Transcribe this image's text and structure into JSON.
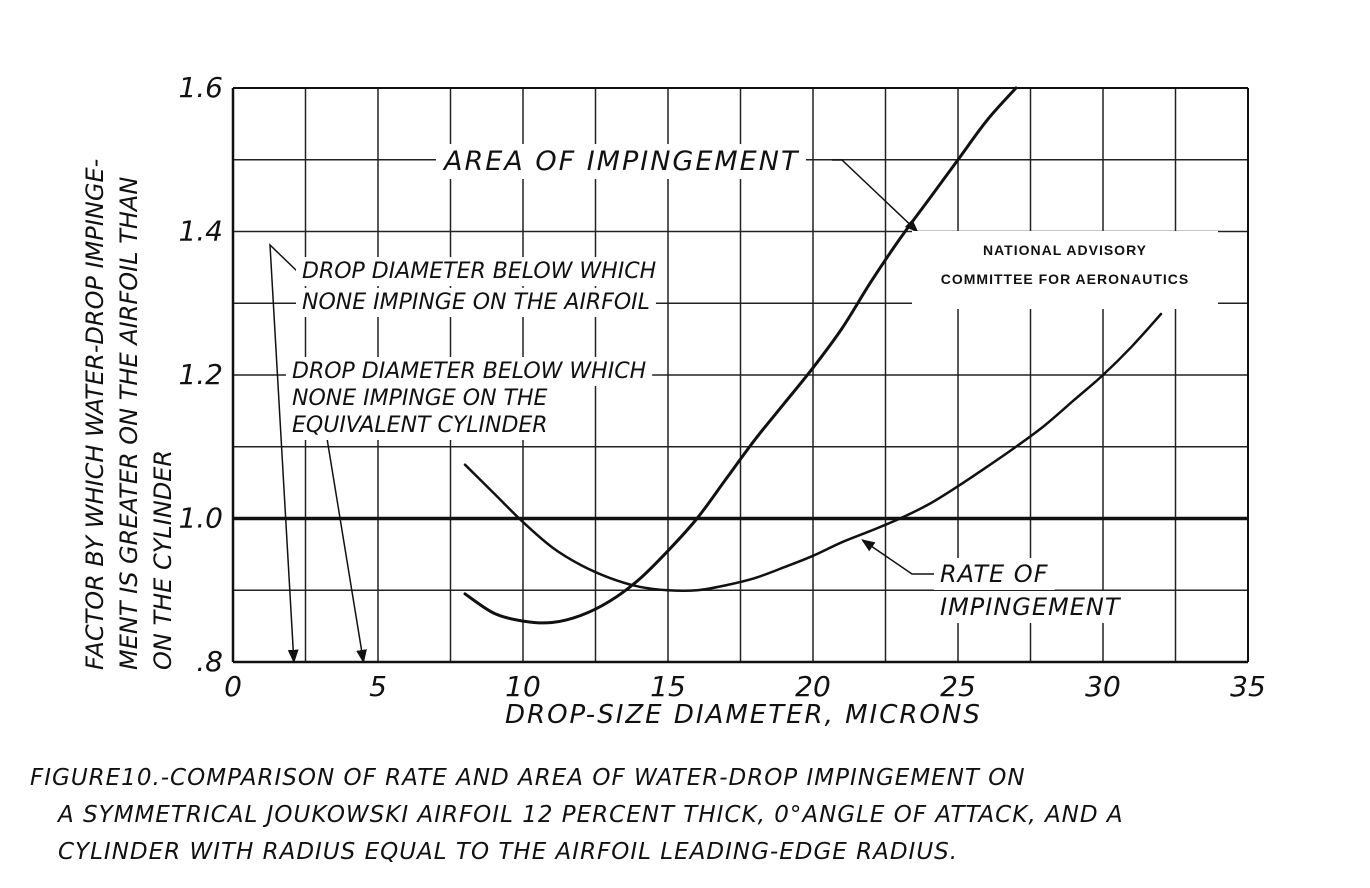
{
  "chart_data": {
    "type": "line",
    "xlabel": "DROP-SIZE DIAMETER, MICRONS",
    "ylabel_lines": [
      "FACTOR BY WHICH WATER-DROP IMPINGE-",
      "MENT IS GREATER ON THE AIRFOIL THAN",
      "ON THE CYLINDER"
    ],
    "xlim": [
      0,
      35
    ],
    "ylim": [
      0.8,
      1.6
    ],
    "x_ticks": [
      0,
      5,
      10,
      15,
      20,
      25,
      30,
      35
    ],
    "x_tick_labels": [
      "0",
      "5",
      "10",
      "15",
      "20",
      "25",
      "30",
      "35"
    ],
    "y_ticks": [
      0.8,
      1.0,
      1.2,
      1.4,
      1.6
    ],
    "y_tick_labels": [
      ".8",
      "1.0",
      "1.2",
      "1.4",
      "1.6"
    ],
    "grid": true,
    "reference_line_y": 1.0,
    "series": [
      {
        "name": "AREA OF IMPINGEMENT",
        "x": [
          8,
          9,
          10,
          11,
          12,
          13,
          14,
          15,
          16,
          17,
          18,
          19,
          20,
          21,
          22,
          23,
          24,
          25,
          26,
          27
        ],
        "y": [
          0.895,
          0.868,
          0.857,
          0.855,
          0.865,
          0.885,
          0.915,
          0.955,
          1.0,
          1.055,
          1.11,
          1.16,
          1.21,
          1.265,
          1.33,
          1.39,
          1.445,
          1.5,
          1.555,
          1.6
        ]
      },
      {
        "name": "RATE OF IMPINGEMENT",
        "x": [
          8,
          9,
          10,
          11,
          12,
          13,
          14,
          15,
          16,
          17,
          18,
          19,
          20,
          21,
          22,
          23,
          24,
          25,
          26,
          27,
          28,
          29,
          30,
          31,
          32
        ],
        "y": [
          1.075,
          1.035,
          0.995,
          0.96,
          0.935,
          0.917,
          0.905,
          0.9,
          0.9,
          0.907,
          0.917,
          0.932,
          0.948,
          0.967,
          0.983,
          1.0,
          1.02,
          1.045,
          1.072,
          1.1,
          1.13,
          1.165,
          1.2,
          1.24,
          1.285
        ]
      }
    ],
    "annotations": [
      {
        "text": "AREA OF IMPINGEMENT",
        "target": [
          23.6,
          1.4
        ]
      },
      {
        "text": "RATE OF IMPINGEMENT",
        "target": [
          21.7,
          0.97
        ]
      },
      {
        "lines": [
          "DROP DIAMETER BELOW WHICH",
          "NONE IMPINGE ON THE AIRFOIL"
        ],
        "target": [
          2.1,
          0.8
        ]
      },
      {
        "lines": [
          "DROP DIAMETER BELOW WHICH",
          "NONE IMPINGE ON THE",
          "EQUIVALENT CYLINDER"
        ],
        "target": [
          4.5,
          0.8
        ]
      }
    ],
    "stamp_lines": [
      "NATIONAL ADVISORY",
      "COMMITTEE FOR AERONAUTICS"
    ]
  },
  "caption": [
    "FIGURE10.-COMPARISON OF RATE AND AREA OF WATER-DROP IMPINGEMENT ON",
    "A SYMMETRICAL JOUKOWSKI AIRFOIL 12 PERCENT THICK, 0°ANGLE OF ATTACK, AND A",
    "CYLINDER WITH RADIUS EQUAL TO THE AIRFOIL LEADING-EDGE RADIUS."
  ]
}
